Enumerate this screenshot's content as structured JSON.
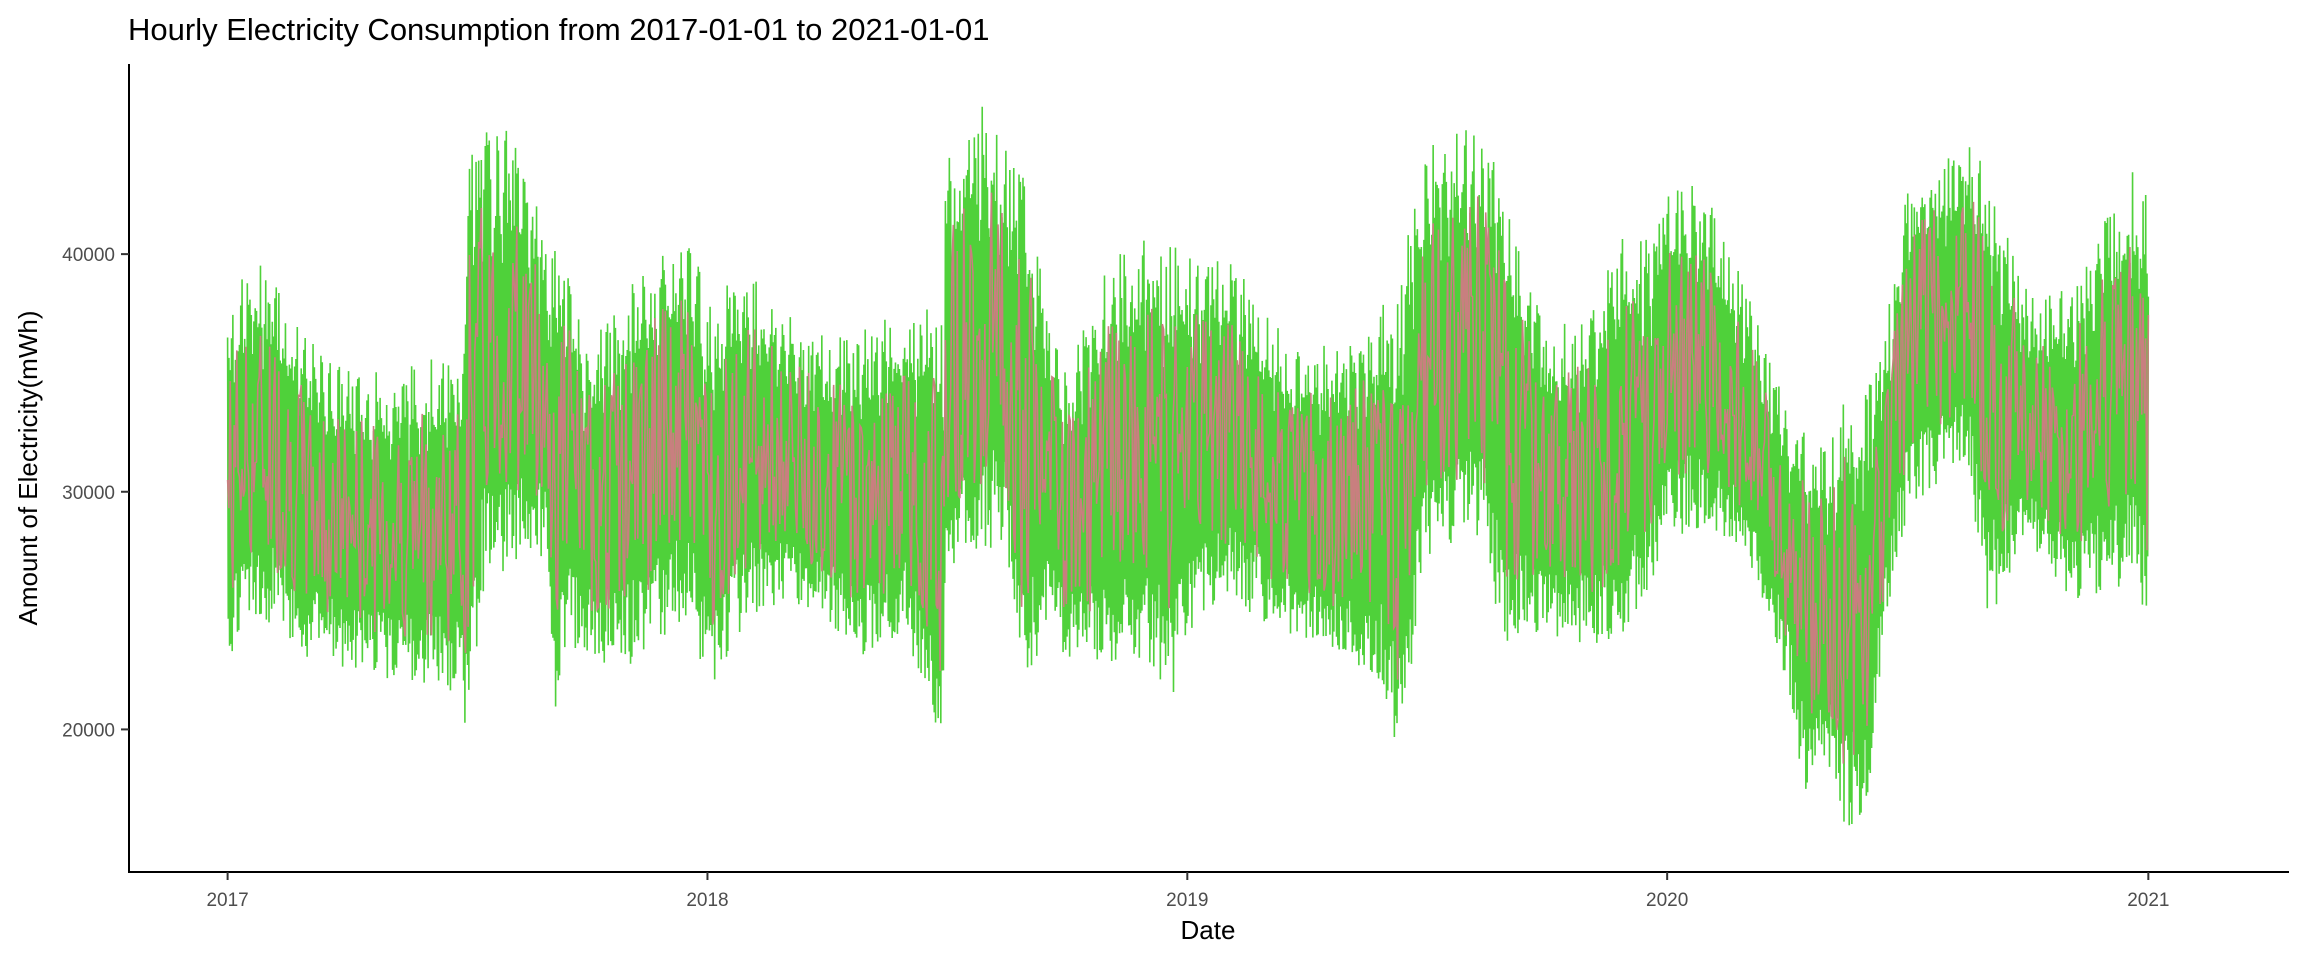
{
  "chart_data": {
    "type": "line",
    "title": "Hourly Electricity Consumption from 2017-01-01 to 2021-01-01",
    "xlabel": "Date",
    "ylabel": "Amount of Electricity(mWh)",
    "x_type": "date",
    "xlim": [
      "2016-10-18",
      "2021-04-18"
    ],
    "ylim": [
      14000,
      48000
    ],
    "x_ticks": [
      {
        "value": "2017-01-01",
        "label": "2017"
      },
      {
        "value": "2018-01-01",
        "label": "2018"
      },
      {
        "value": "2019-01-01",
        "label": "2019"
      },
      {
        "value": "2020-01-01",
        "label": "2020"
      },
      {
        "value": "2021-01-01",
        "label": "2021"
      }
    ],
    "y_ticks": [
      {
        "value": 20000,
        "label": "20000"
      },
      {
        "value": 30000,
        "label": "30000"
      },
      {
        "value": 40000,
        "label": "40000"
      }
    ],
    "grid": false,
    "legend": "none",
    "line_color": "#c87f7f",
    "overlay_color": "#4fd13a",
    "series": [
      {
        "x": [
          "2017-01-01",
          "2017-01-08",
          "2017-02-01",
          "2017-03-01",
          "2017-04-01",
          "2017-05-01",
          "2017-06-01",
          "2017-06-28",
          "2017-07-01",
          "2017-07-15",
          "2017-08-01",
          "2017-08-15",
          "2017-09-01",
          "2017-09-05",
          "2017-09-15",
          "2017-10-01",
          "2017-11-01",
          "2017-12-01",
          "2017-12-20",
          "2018-01-01",
          "2018-02-01",
          "2018-03-01",
          "2018-04-01",
          "2018-05-01",
          "2018-06-01",
          "2018-06-30",
          "2018-07-01",
          "2018-07-15",
          "2018-08-01",
          "2018-08-15",
          "2018-08-30",
          "2018-09-15",
          "2018-10-01",
          "2018-11-01",
          "2018-12-01",
          "2018-12-20",
          "2019-01-01",
          "2019-02-01",
          "2019-03-01",
          "2019-04-01",
          "2019-05-01",
          "2019-05-30",
          "2019-06-10",
          "2019-07-01",
          "2019-08-01",
          "2019-08-15",
          "2019-09-01",
          "2019-09-15",
          "2019-10-01",
          "2019-11-01",
          "2019-12-01",
          "2019-12-20",
          "2020-01-01",
          "2020-02-01",
          "2020-03-01",
          "2020-04-01",
          "2020-04-15",
          "2020-05-01",
          "2020-05-15",
          "2020-06-01",
          "2020-06-15",
          "2020-07-01",
          "2020-07-15",
          "2020-08-01",
          "2020-08-15",
          "2020-09-01",
          "2020-10-01",
          "2020-11-01",
          "2020-12-01",
          "2020-12-20",
          "2021-01-01"
        ],
        "max": [
          38500,
          38800,
          39900,
          36500,
          35200,
          35000,
          35600,
          35400,
          44200,
          45500,
          45300,
          44200,
          40500,
          40000,
          40900,
          36000,
          38500,
          40800,
          41000,
          38000,
          39500,
          37500,
          36500,
          37000,
          37500,
          38300,
          43800,
          45200,
          46700,
          44400,
          44300,
          38000,
          35000,
          39500,
          41000,
          40500,
          40000,
          40200,
          37500,
          36000,
          36500,
          38000,
          38700,
          44500,
          45300,
          44900,
          43000,
          40000,
          37000,
          37500,
          41000,
          40500,
          43500,
          42500,
          38500,
          33500,
          33000,
          32000,
          34500,
          34500,
          37000,
          42800,
          43800,
          44300,
          45300,
          43500,
          38500,
          38500,
          42000,
          43500,
          42900
        ],
        "min": [
          21000,
          24000,
          24500,
          23000,
          22500,
          22000,
          21800,
          21500,
          18000,
          26000,
          26500,
          27500,
          27000,
          20000,
          23500,
          23000,
          22500,
          24000,
          24500,
          21500,
          24500,
          25500,
          24500,
          23000,
          24000,
          19000,
          26000,
          27000,
          27500,
          28000,
          20800,
          24500,
          23000,
          22500,
          23000,
          21000,
          24000,
          25500,
          24500,
          23500,
          22500,
          22000,
          18300,
          27000,
          28000,
          27500,
          23000,
          24000,
          24000,
          23500,
          24000,
          26000,
          28000,
          28500,
          27500,
          22000,
          17200,
          18500,
          15500,
          16500,
          24000,
          29000,
          29500,
          30500,
          31500,
          24500,
          28000,
          25500,
          25500,
          26500,
          24500
        ]
      }
    ]
  }
}
